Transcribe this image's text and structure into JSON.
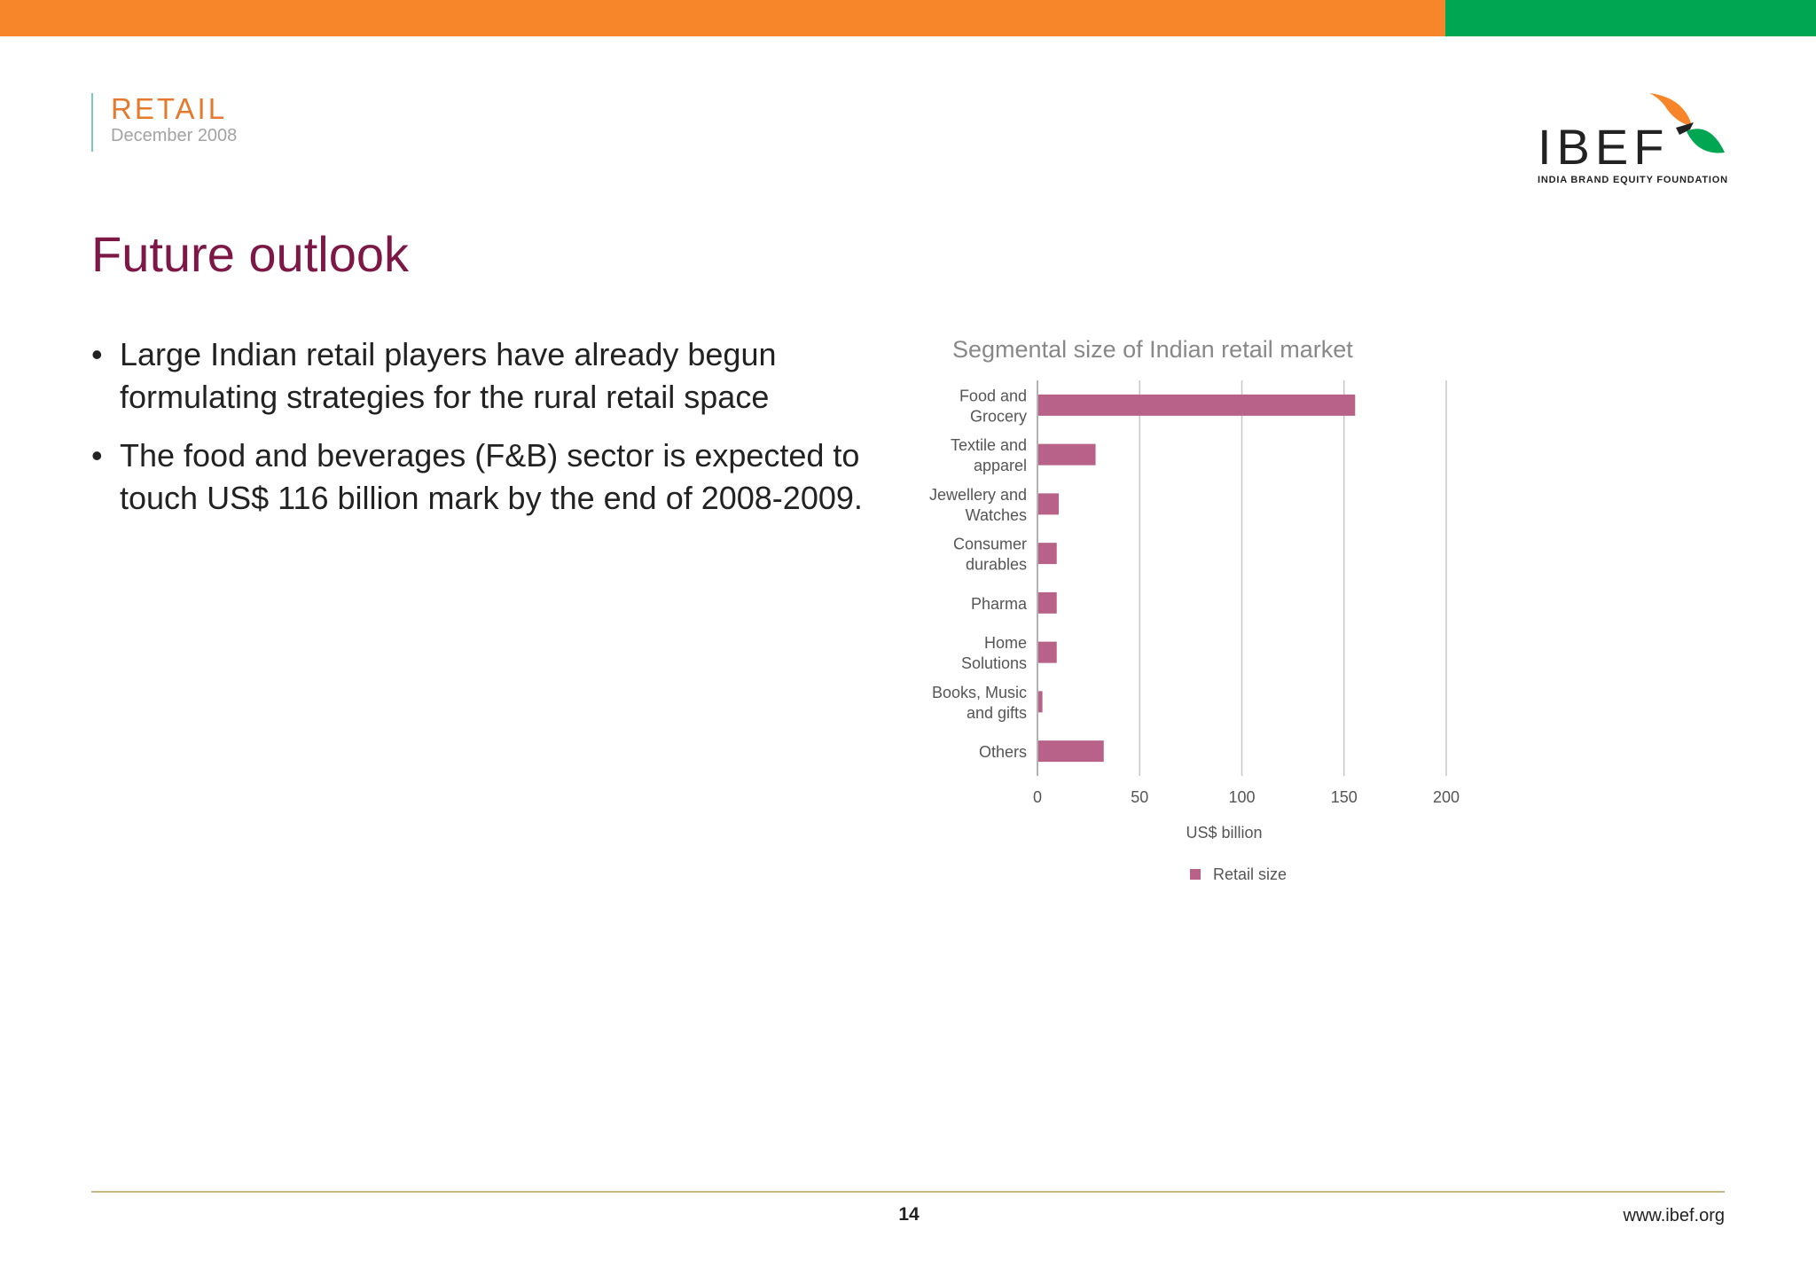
{
  "header": {
    "section": "RETAIL",
    "date": "December 2008",
    "logo_text": "IBEF",
    "logo_tagline": "INDIA BRAND EQUITY FOUNDATION"
  },
  "page_title": "Future outlook",
  "bullets": [
    "Large Indian retail players have already begun formulating strategies for the rural retail space",
    "The food and beverages (F&B) sector is expected to touch US$ 116 billion mark by the end of 2008-2009."
  ],
  "footer": {
    "page_number": "14",
    "url": "www.ibef.org"
  },
  "colors": {
    "orange": "#f7862a",
    "green": "#00a651",
    "title": "#7d1746",
    "section": "#e57a2e",
    "bar": "#b8628a",
    "footer_line": "#c9b886"
  },
  "chart_data": {
    "type": "bar",
    "orientation": "horizontal",
    "title": "Segmental size of Indian retail market",
    "categories": [
      [
        "Food and",
        "Grocery"
      ],
      [
        "Textile and",
        "apparel"
      ],
      [
        "Jewellery and",
        "Watches"
      ],
      [
        "Consumer",
        "durables"
      ],
      [
        "Pharma"
      ],
      [
        "Home",
        "Solutions"
      ],
      [
        "Books, Music",
        "and gifts"
      ],
      [
        "Others"
      ]
    ],
    "series": [
      {
        "name": "Retail size",
        "values": [
          155,
          28,
          10,
          9,
          9,
          9,
          2,
          32
        ]
      }
    ],
    "xlabel": "US$ billion",
    "xlim": [
      0,
      200
    ],
    "xticks": [
      0,
      50,
      100,
      150,
      200
    ],
    "grid": true,
    "legend": "bottom"
  }
}
